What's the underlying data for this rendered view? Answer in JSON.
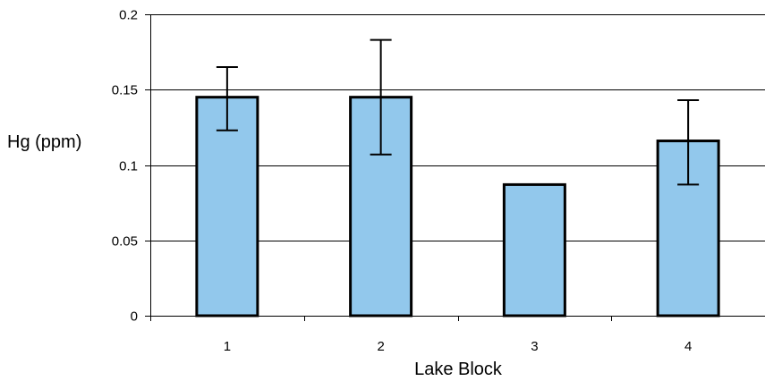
{
  "chart_data": {
    "type": "bar",
    "title": "",
    "xlabel": "Lake Block",
    "ylabel": "Hg (ppm)",
    "categories": [
      "1",
      "2",
      "3",
      "4"
    ],
    "values": [
      0.145,
      0.145,
      0.087,
      0.116
    ],
    "error_bars": [
      {
        "low": 0.123,
        "high": 0.165
      },
      {
        "low": 0.107,
        "high": 0.183
      },
      null,
      {
        "low": 0.087,
        "high": 0.143
      }
    ],
    "ylim": [
      0,
      0.2
    ],
    "yticks": [
      "0",
      "0.05",
      "0.1",
      "0.15",
      "0.2"
    ],
    "ytick_values": [
      0,
      0.05,
      0.1,
      0.15,
      0.2
    ],
    "grid": "horizontal",
    "legend": "none",
    "colors": {
      "bar_fill": "#92c8ec",
      "bar_stroke": "#000000",
      "grid": "#000000"
    }
  }
}
